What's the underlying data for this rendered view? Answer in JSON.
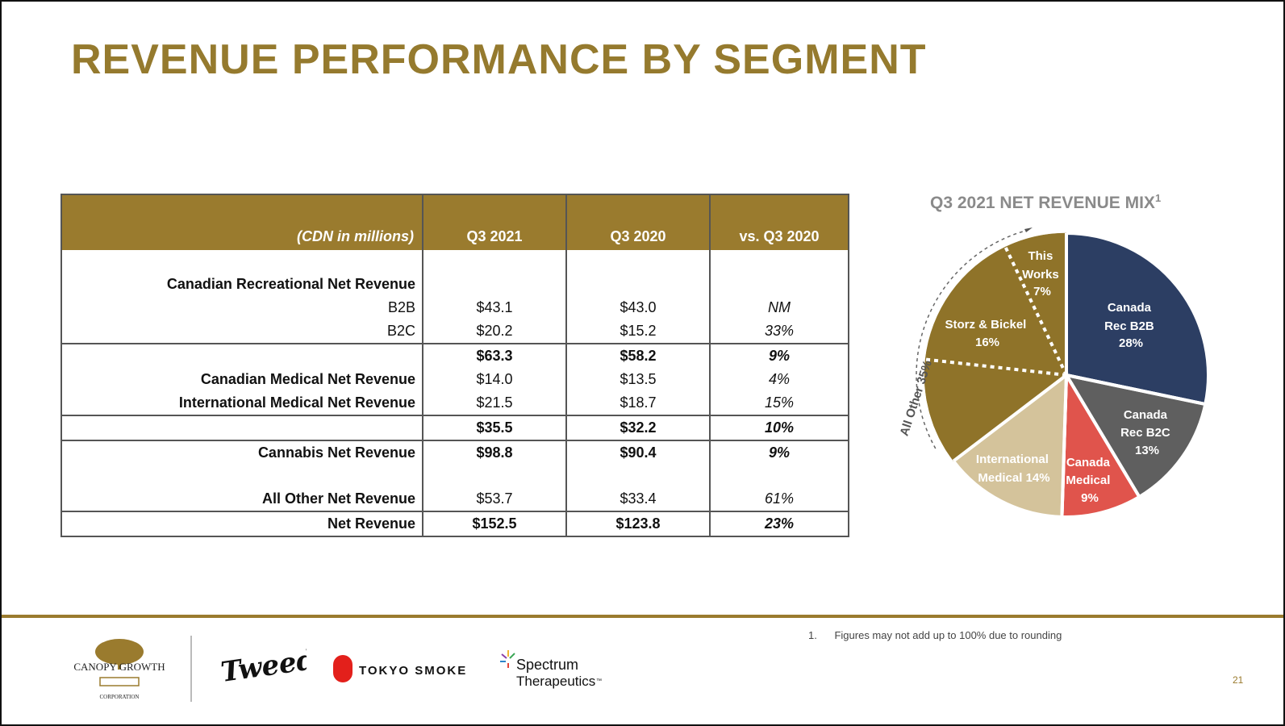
{
  "title": "REVENUE PERFORMANCE BY SEGMENT",
  "table": {
    "unit_label": "(CDN in millions)",
    "headers": [
      "Q3 2021",
      "Q3 2020",
      "vs. Q3 2020"
    ],
    "rows": [
      {
        "label": "Canadian Recreational Net Revenue",
        "v1": "",
        "v2": "",
        "pct": ""
      },
      {
        "label": "B2B",
        "v1": "$43.1",
        "v2": "$43.0",
        "pct": "NM"
      },
      {
        "label": "B2C",
        "v1": "$20.2",
        "v2": "$15.2",
        "pct": "33%"
      },
      {
        "label": "",
        "v1": "$63.3",
        "v2": "$58.2",
        "pct": "9%"
      },
      {
        "label": "Canadian Medical Net Revenue",
        "v1": "$14.0",
        "v2": "$13.5",
        "pct": "4%"
      },
      {
        "label": "International Medical Net Revenue",
        "v1": "$21.5",
        "v2": "$18.7",
        "pct": "15%"
      },
      {
        "label": "",
        "v1": "$35.5",
        "v2": "$32.2",
        "pct": "10%"
      },
      {
        "label": "Cannabis Net Revenue",
        "v1": "$98.8",
        "v2": "$90.4",
        "pct": "9%"
      },
      {
        "label": "All Other Net Revenue",
        "v1": "$53.7",
        "v2": "$33.4",
        "pct": "61%"
      },
      {
        "label": "Net Revenue",
        "v1": "$152.5",
        "v2": "$123.8",
        "pct": "23%"
      }
    ]
  },
  "chart_data": {
    "type": "pie",
    "title": "Q3 2021 NET REVENUE MIX",
    "title_superscript": "1",
    "slices": [
      {
        "label": "Canada Rec B2B",
        "value": 28,
        "value_label": "28%",
        "color": "#2c3e63"
      },
      {
        "label": "Canada Rec B2C",
        "value": 13,
        "value_label": "13%",
        "color": "#5f5f5f"
      },
      {
        "label": "Canada Medical",
        "value": 9,
        "value_label": "9%",
        "color": "#e0544c"
      },
      {
        "label": "International Medical",
        "value": 14,
        "value_label": "14%",
        "color": "#d4c39b"
      },
      {
        "label": "",
        "value": 12,
        "value_label": "",
        "color": "#8f7329"
      },
      {
        "label": "Storz & Bickel",
        "value": 16,
        "value_label": "16%",
        "color": "#8f7329"
      },
      {
        "label": "This Works",
        "value": 7,
        "value_label": "7%",
        "color": "#8f7329"
      }
    ],
    "group_label": "All Other 35%",
    "strings": {
      "rec_b2b_1": "Canada",
      "rec_b2b_2": "Rec B2B",
      "rec_b2b_3": "28%",
      "rec_b2c_1": "Canada",
      "rec_b2c_2": "Rec B2C",
      "rec_b2c_3": "13%",
      "med_1": "Canada",
      "med_2": "Medical",
      "med_3": "9%",
      "intl_1": "International",
      "intl_2": "Medical 14%",
      "storz_1": "Storz & Bickel",
      "storz_2": "16%",
      "tw_1": "This",
      "tw_2": "Works",
      "tw_3": "7%"
    }
  },
  "footnote": {
    "number": "1.",
    "text": "Figures may not add up to 100% due to rounding"
  },
  "page_number": "21",
  "logos": {
    "canopy": "CANOPY GROWTH",
    "canopy_sub": "CORPORATION",
    "tweed": "Tweed",
    "tokyo": "TOKYO SMOKE",
    "spectrum_1": "Spectrum",
    "spectrum_2": "Therapeutics",
    "spectrum_tm": "™"
  }
}
